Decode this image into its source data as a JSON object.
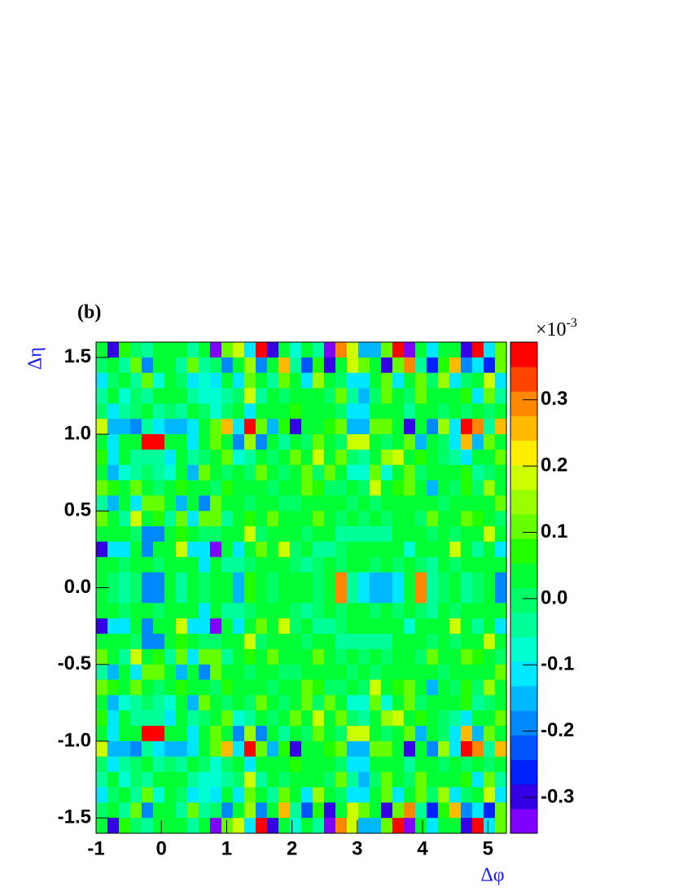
{
  "chart_data": {
    "type": "heatmap",
    "panel_label": "(b)",
    "xlabel": "Δφ",
    "ylabel": "Δη",
    "xlim": [
      -1,
      5.283
    ],
    "ylim": [
      -1.6,
      1.6
    ],
    "xticks": [
      -1,
      0,
      1,
      2,
      3,
      4,
      5
    ],
    "yticks": [
      -1.5,
      {
        "value": -1.0,
        "label": "-1.0"
      },
      -0.5,
      {
        "value": 0.0,
        "label": "0.0"
      },
      0.5,
      {
        "value": 1.0,
        "label": "1.0"
      },
      1.5
    ],
    "zlim": [
      -0.354,
      0.387
    ],
    "zticks": [
      -0.3,
      -0.2,
      -0.1,
      {
        "value": 0.0,
        "label": "0.0"
      },
      0.1,
      0.2,
      0.3
    ],
    "z_scale_base": "×10",
    "z_scale_exponent": "-3",
    "palette": [
      "#8000ff",
      "#3300e6",
      "#0022ff",
      "#0055ff",
      "#0088ff",
      "#00b8ff",
      "#00e8ff",
      "#00ffd0",
      "#00ff99",
      "#00ff66",
      "#00ff33",
      "#22ff00",
      "#66ff00",
      "#99ff00",
      "#ccff00",
      "#ffee00",
      "#ffbb00",
      "#ff8800",
      "#ff4400",
      "#ff0000"
    ],
    "z": [
      [
        0.05,
        -0.3,
        0.08,
        0.0,
        -0.05,
        0.05,
        0.03,
        0.05,
        -0.05,
        0.03,
        -0.32,
        0.12,
        0.18,
        -0.1,
        0.35,
        -0.28,
        0.05,
        -0.08,
        0.02,
        -0.05,
        -0.32,
        0.3,
        0.2,
        -0.15,
        -0.15,
        0.1,
        0.35,
        -0.33,
        0.05,
        -0.1,
        0.02,
        0.05,
        -0.3,
        0.35,
        -0.1,
        0.1
      ],
      [
        0.0,
        0.05,
        -0.05,
        0.1,
        -0.2,
        0.02,
        0.05,
        -0.05,
        0.1,
        -0.05,
        0.0,
        -0.2,
        0.05,
        0.15,
        -0.2,
        0.05,
        0.25,
        -0.05,
        -0.22,
        0.08,
        -0.3,
        0.05,
        0.2,
        0.1,
        0.05,
        -0.28,
        0.1,
        0.3,
        -0.05,
        -0.25,
        0.08,
        0.25,
        -0.2,
        -0.1,
        -0.25,
        0.1
      ],
      [
        -0.1,
        0.0,
        0.05,
        -0.05,
        0.1,
        -0.08,
        0.05,
        0.0,
        -0.1,
        -0.08,
        -0.1,
        0.05,
        -0.1,
        0.1,
        0.02,
        -0.05,
        0.12,
        0.05,
        -0.1,
        0.15,
        0.05,
        0.0,
        -0.1,
        -0.1,
        0.05,
        0.1,
        -0.1,
        0.05,
        0.1,
        0.0,
        0.15,
        -0.1,
        0.0,
        0.05,
        0.2,
        -0.1
      ],
      [
        -0.05,
        0.02,
        -0.08,
        0.0,
        -0.05,
        0.05,
        0.02,
        0.05,
        -0.05,
        -0.08,
        -0.08,
        -0.05,
        0.0,
        0.2,
        -0.05,
        0.05,
        0.0,
        0.05,
        0.05,
        0.02,
        0.0,
        0.1,
        -0.05,
        -0.15,
        0.0,
        0.1,
        0.05,
        0.0,
        0.12,
        0.02,
        0.05,
        0.05,
        0.08,
        -0.1,
        0.1,
        -0.05
      ],
      [
        0.0,
        -0.1,
        -0.05,
        0.0,
        0.05,
        -0.05,
        0.0,
        -0.05,
        0.05,
        0.0,
        -0.08,
        0.0,
        0.05,
        -0.1,
        0.05,
        0.02,
        0.05,
        0.08,
        0.05,
        0.02,
        0.05,
        0.0,
        -0.1,
        -0.1,
        0.05,
        0.05,
        0.02,
        -0.05,
        0.05,
        0.05,
        0.0,
        0.05,
        0.0,
        0.05,
        0.0,
        0.05
      ],
      [
        0.2,
        -0.15,
        -0.15,
        -0.2,
        -0.05,
        -0.1,
        -0.15,
        -0.15,
        -0.1,
        0.05,
        0.1,
        0.25,
        -0.1,
        0.35,
        0.1,
        -0.15,
        0.08,
        -0.3,
        0.05,
        0.05,
        0.08,
        0.1,
        -0.15,
        -0.15,
        0.1,
        0.1,
        0.05,
        -0.3,
        0.05,
        -0.2,
        0.15,
        -0.1,
        0.35,
        0.3,
        -0.05,
        0.25
      ],
      [
        0.05,
        -0.1,
        0.02,
        0.05,
        0.36,
        0.36,
        0.05,
        0.02,
        -0.1,
        0.05,
        0.1,
        0.05,
        -0.2,
        0.15,
        -0.2,
        0.05,
        -0.05,
        0.05,
        0.0,
        0.1,
        0.05,
        0.0,
        0.2,
        0.2,
        0.05,
        0.0,
        0.05,
        0.1,
        -0.15,
        0.05,
        0.0,
        -0.1,
        0.25,
        -0.15,
        0.1,
        0.05
      ],
      [
        0.08,
        -0.1,
        0.05,
        -0.05,
        -0.05,
        -0.05,
        -0.1,
        0.02,
        -0.05,
        0.0,
        0.05,
        0.1,
        -0.08,
        -0.05,
        0.05,
        0.0,
        0.05,
        0.1,
        0.02,
        0.2,
        0.05,
        0.1,
        0.0,
        -0.05,
        0.05,
        0.15,
        0.2,
        0.05,
        0.08,
        0.05,
        0.0,
        -0.05,
        -0.1,
        0.05,
        0.02,
        0.1
      ],
      [
        0.05,
        -0.15,
        -0.08,
        -0.05,
        0.0,
        -0.05,
        -0.08,
        0.05,
        -0.15,
        0.1,
        0.05,
        0.0,
        0.05,
        0.0,
        0.1,
        0.05,
        0.0,
        0.05,
        0.12,
        0.0,
        0.1,
        0.05,
        -0.08,
        -0.08,
        0.1,
        -0.08,
        0.05,
        0.1,
        0.0,
        0.05,
        0.05,
        0.05,
        0.08,
        -0.05,
        0.0,
        0.05
      ],
      [
        0.1,
        0.08,
        0.02,
        0.1,
        0.05,
        0.0,
        0.05,
        0.08,
        0.05,
        0.05,
        0.0,
        0.08,
        0.02,
        0.05,
        0.05,
        0.0,
        0.05,
        0.05,
        0.1,
        0.08,
        0.0,
        0.0,
        0.05,
        0.0,
        0.2,
        0.05,
        0.08,
        0.1,
        0.05,
        -0.15,
        0.05,
        0.0,
        0.08,
        0.0,
        0.15,
        0.05
      ],
      [
        -0.05,
        -0.15,
        0.05,
        -0.1,
        0.1,
        0.1,
        0.05,
        -0.15,
        0.02,
        -0.2,
        0.1,
        0.05,
        0.05,
        0.0,
        0.02,
        0.05,
        0.0,
        0.0,
        0.05,
        0.05,
        0.02,
        0.05,
        0.0,
        0.05,
        0.0,
        0.05,
        0.05,
        0.02,
        0.05,
        0.05,
        0.0,
        0.05,
        0.05,
        0.02,
        0.05,
        0.1
      ],
      [
        0.1,
        0.05,
        -0.05,
        0.2,
        0.05,
        0.08,
        -0.05,
        0.1,
        -0.1,
        0.1,
        0.12,
        -0.05,
        0.05,
        0.08,
        0.05,
        0.1,
        0.05,
        0.02,
        0.05,
        0.1,
        0.05,
        0.0,
        0.05,
        0.0,
        0.05,
        0.0,
        0.05,
        0.05,
        0.0,
        0.1,
        0.05,
        0.05,
        0.12,
        0.08,
        0.05,
        0.0
      ],
      [
        0.05,
        0.02,
        0.05,
        0.0,
        -0.2,
        -0.2,
        0.05,
        0.08,
        0.05,
        0.0,
        0.0,
        0.05,
        0.02,
        0.2,
        0.0,
        0.05,
        0.05,
        0.02,
        0.0,
        0.05,
        0.05,
        -0.05,
        -0.05,
        -0.05,
        -0.05,
        -0.05,
        0.05,
        0.05,
        0.05,
        0.0,
        0.05,
        0.0,
        0.05,
        0.05,
        0.2,
        0.05
      ],
      [
        -0.3,
        -0.1,
        -0.1,
        0.05,
        -0.2,
        0.05,
        0.05,
        0.2,
        -0.1,
        -0.1,
        -0.32,
        0.05,
        -0.1,
        0.05,
        0.12,
        0.02,
        0.2,
        0.0,
        0.05,
        -0.05,
        -0.05,
        0.0,
        0.05,
        0.02,
        0.02,
        0.05,
        0.05,
        -0.08,
        0.02,
        0.05,
        0.05,
        0.2,
        0.05,
        -0.05,
        0.05,
        -0.1
      ],
      [
        0.02,
        0.05,
        0.0,
        0.02,
        0.05,
        0.0,
        0.05,
        0.02,
        0.02,
        -0.1,
        0.05,
        -0.05,
        -0.05,
        0.0,
        0.05,
        0.02,
        0.05,
        0.0,
        -0.05,
        0.0,
        0.05,
        0.0,
        0.05,
        0.05,
        0.0,
        0.05,
        0.0,
        0.05,
        0.0,
        -0.05,
        0.05,
        0.0,
        0.05,
        0.02,
        0.05,
        0.02
      ],
      [
        0.05,
        0.0,
        -0.05,
        0.0,
        -0.2,
        -0.2,
        0.05,
        -0.05,
        0.02,
        0.0,
        0.02,
        0.05,
        -0.15,
        0.08,
        0.05,
        0.0,
        0.05,
        0.02,
        0.05,
        0.0,
        0.05,
        0.3,
        -0.05,
        -0.1,
        -0.15,
        -0.15,
        -0.1,
        0.05,
        0.28,
        -0.05,
        0.0,
        0.05,
        -0.05,
        0.0,
        0.05,
        -0.2
      ],
      [
        0.05,
        0.0,
        -0.05,
        0.0,
        -0.2,
        -0.2,
        0.05,
        -0.05,
        0.02,
        0.0,
        0.02,
        0.05,
        -0.15,
        0.08,
        0.05,
        0.0,
        0.05,
        0.02,
        0.05,
        0.0,
        0.05,
        0.3,
        -0.05,
        -0.1,
        -0.15,
        -0.15,
        -0.1,
        0.05,
        0.28,
        -0.05,
        0.0,
        0.05,
        -0.05,
        0.0,
        0.05,
        -0.2
      ],
      [
        0.02,
        0.05,
        0.0,
        0.02,
        0.05,
        0.0,
        0.05,
        0.02,
        0.02,
        -0.1,
        0.05,
        -0.05,
        -0.05,
        0.0,
        0.05,
        0.02,
        0.05,
        0.0,
        -0.05,
        0.0,
        0.05,
        0.0,
        0.05,
        0.05,
        0.0,
        0.05,
        0.0,
        0.05,
        0.0,
        -0.05,
        0.05,
        0.0,
        0.05,
        0.02,
        0.05,
        0.02
      ],
      [
        -0.3,
        -0.1,
        -0.1,
        0.05,
        -0.2,
        0.05,
        0.05,
        0.2,
        -0.1,
        -0.1,
        -0.32,
        0.05,
        -0.1,
        0.05,
        0.12,
        0.02,
        0.2,
        0.0,
        0.05,
        -0.05,
        -0.05,
        0.0,
        0.05,
        0.02,
        0.02,
        0.05,
        0.05,
        -0.08,
        0.02,
        0.05,
        0.05,
        0.2,
        0.05,
        -0.05,
        0.05,
        -0.1
      ],
      [
        0.05,
        0.02,
        0.05,
        0.0,
        -0.2,
        -0.2,
        0.05,
        0.08,
        0.05,
        0.0,
        0.0,
        0.05,
        0.02,
        0.2,
        0.0,
        0.05,
        0.05,
        0.02,
        0.0,
        0.05,
        0.05,
        -0.05,
        -0.05,
        -0.05,
        -0.05,
        -0.05,
        0.05,
        0.05,
        0.05,
        0.0,
        0.05,
        0.0,
        0.05,
        0.05,
        0.2,
        0.05
      ],
      [
        0.1,
        0.05,
        -0.05,
        0.2,
        0.05,
        0.08,
        -0.05,
        0.1,
        -0.1,
        0.1,
        0.12,
        -0.05,
        0.05,
        0.08,
        0.05,
        0.1,
        0.05,
        0.02,
        0.05,
        0.1,
        0.05,
        0.0,
        0.05,
        0.0,
        0.05,
        0.0,
        0.05,
        0.05,
        0.0,
        0.1,
        0.05,
        0.05,
        0.12,
        0.08,
        0.05,
        0.0
      ],
      [
        -0.05,
        -0.15,
        0.05,
        -0.1,
        0.1,
        0.1,
        0.05,
        -0.15,
        0.02,
        -0.2,
        0.1,
        0.05,
        0.05,
        0.0,
        0.02,
        0.05,
        0.0,
        0.0,
        0.05,
        0.05,
        0.02,
        0.05,
        0.0,
        0.05,
        0.0,
        0.05,
        0.05,
        0.02,
        0.05,
        0.05,
        0.0,
        0.05,
        0.05,
        0.02,
        0.05,
        0.1
      ],
      [
        0.1,
        0.08,
        0.02,
        0.1,
        0.05,
        0.0,
        0.05,
        0.08,
        0.05,
        0.05,
        0.0,
        0.08,
        0.02,
        0.05,
        0.05,
        0.0,
        0.05,
        0.05,
        0.1,
        0.08,
        0.0,
        0.0,
        0.05,
        0.0,
        0.2,
        0.05,
        0.08,
        0.1,
        0.05,
        -0.15,
        0.05,
        0.0,
        0.08,
        0.0,
        0.15,
        0.05
      ],
      [
        0.05,
        -0.15,
        -0.08,
        -0.05,
        0.0,
        -0.05,
        -0.08,
        0.05,
        -0.15,
        0.1,
        0.05,
        0.0,
        0.05,
        0.0,
        0.1,
        0.05,
        0.0,
        0.05,
        0.12,
        0.0,
        0.1,
        0.05,
        -0.08,
        -0.08,
        0.1,
        -0.08,
        0.05,
        0.1,
        0.0,
        0.05,
        0.05,
        0.05,
        0.08,
        -0.05,
        0.0,
        0.05
      ],
      [
        0.08,
        -0.1,
        0.05,
        -0.05,
        -0.05,
        -0.05,
        -0.1,
        0.02,
        -0.05,
        0.0,
        0.05,
        0.1,
        -0.08,
        -0.05,
        0.05,
        0.0,
        0.05,
        0.1,
        0.02,
        0.2,
        0.05,
        0.1,
        0.0,
        -0.05,
        0.05,
        0.15,
        0.2,
        0.05,
        0.08,
        0.05,
        0.0,
        -0.05,
        -0.1,
        0.05,
        0.02,
        0.1
      ],
      [
        0.05,
        -0.1,
        0.02,
        0.05,
        0.36,
        0.36,
        0.05,
        0.02,
        -0.1,
        0.05,
        0.1,
        0.05,
        -0.2,
        0.15,
        -0.2,
        0.05,
        -0.05,
        0.05,
        0.0,
        0.1,
        0.05,
        0.0,
        0.2,
        0.2,
        0.05,
        0.0,
        0.05,
        0.1,
        -0.15,
        0.05,
        0.0,
        -0.1,
        0.25,
        -0.15,
        0.1,
        0.05
      ],
      [
        0.2,
        -0.15,
        -0.15,
        -0.2,
        -0.05,
        -0.1,
        -0.15,
        -0.15,
        -0.1,
        0.05,
        0.1,
        0.25,
        -0.1,
        0.35,
        0.1,
        -0.15,
        0.08,
        -0.3,
        0.05,
        0.05,
        0.08,
        0.1,
        -0.15,
        -0.15,
        0.1,
        0.1,
        0.05,
        -0.3,
        0.05,
        -0.2,
        0.15,
        -0.1,
        0.35,
        0.3,
        -0.05,
        0.25
      ],
      [
        0.0,
        -0.1,
        -0.05,
        0.0,
        0.05,
        -0.05,
        0.0,
        -0.05,
        0.05,
        0.0,
        -0.08,
        0.0,
        0.05,
        -0.1,
        0.05,
        0.02,
        0.05,
        0.08,
        0.05,
        0.02,
        0.05,
        0.0,
        -0.1,
        -0.1,
        0.05,
        0.05,
        0.02,
        -0.05,
        0.05,
        0.05,
        0.0,
        0.05,
        0.0,
        0.05,
        0.0,
        0.05
      ],
      [
        -0.05,
        0.02,
        -0.08,
        0.0,
        -0.05,
        0.05,
        0.02,
        0.05,
        -0.05,
        -0.08,
        -0.08,
        -0.05,
        0.0,
        0.2,
        -0.05,
        0.05,
        0.0,
        0.05,
        0.05,
        0.02,
        0.0,
        0.1,
        -0.05,
        -0.15,
        0.0,
        0.1,
        0.05,
        0.0,
        0.12,
        0.02,
        0.05,
        0.05,
        0.08,
        -0.1,
        0.1,
        -0.05
      ],
      [
        -0.1,
        0.0,
        0.05,
        -0.05,
        0.1,
        -0.08,
        0.05,
        0.0,
        -0.1,
        -0.08,
        -0.1,
        0.05,
        -0.1,
        0.1,
        0.02,
        -0.05,
        0.12,
        0.05,
        -0.1,
        0.15,
        0.05,
        0.0,
        -0.1,
        -0.1,
        0.05,
        0.1,
        -0.1,
        0.05,
        0.1,
        0.0,
        0.15,
        -0.1,
        0.0,
        0.05,
        0.2,
        -0.1
      ],
      [
        0.0,
        0.05,
        -0.05,
        0.1,
        -0.2,
        0.02,
        0.05,
        -0.05,
        0.1,
        -0.05,
        0.0,
        -0.2,
        0.05,
        0.15,
        -0.2,
        0.05,
        0.25,
        -0.05,
        -0.22,
        0.08,
        -0.3,
        0.05,
        0.2,
        0.1,
        0.05,
        -0.28,
        0.1,
        0.3,
        -0.05,
        -0.25,
        0.08,
        0.25,
        -0.2,
        -0.1,
        -0.25,
        0.1
      ],
      [
        0.05,
        -0.3,
        0.08,
        0.0,
        -0.05,
        0.05,
        0.03,
        0.05,
        -0.05,
        0.03,
        -0.32,
        0.12,
        0.18,
        -0.1,
        0.35,
        -0.28,
        0.05,
        -0.08,
        0.02,
        -0.05,
        -0.32,
        0.3,
        0.2,
        -0.15,
        -0.15,
        0.1,
        0.35,
        -0.33,
        0.05,
        -0.1,
        0.02,
        0.05,
        -0.3,
        0.35,
        -0.1,
        0.1
      ]
    ]
  }
}
